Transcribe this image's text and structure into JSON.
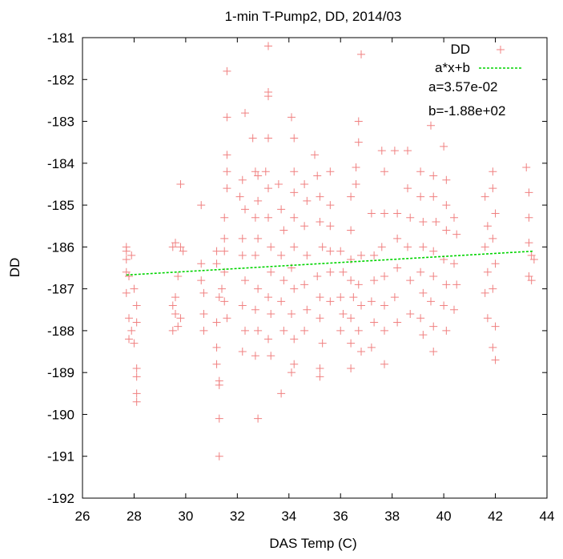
{
  "chart_data": {
    "type": "scatter",
    "title": "1-min T-Pump2, DD, 2014/03",
    "xlabel": "DAS Temp (C)",
    "ylabel": "DD",
    "xlim": [
      26,
      44
    ],
    "ylim": [
      -192,
      -181
    ],
    "xticks": [
      26,
      28,
      30,
      32,
      34,
      36,
      38,
      40,
      42,
      44
    ],
    "yticks": [
      -192,
      -191,
      -190,
      -189,
      -188,
      -187,
      -186,
      -185,
      -184,
      -183,
      -182,
      -181
    ],
    "grid": false,
    "legend_position": "top-right",
    "series": [
      {
        "name": "DD",
        "color": "#f08080",
        "marker": "plus",
        "points": [
          [
            27.7,
            -186.0
          ],
          [
            27.7,
            -186.1
          ],
          [
            27.7,
            -186.3
          ],
          [
            27.7,
            -186.6
          ],
          [
            27.8,
            -186.7
          ],
          [
            27.7,
            -187.1
          ],
          [
            27.8,
            -187.7
          ],
          [
            27.9,
            -188.0
          ],
          [
            27.8,
            -188.2
          ],
          [
            27.9,
            -186.2
          ],
          [
            28.1,
            -187.4
          ],
          [
            28.1,
            -187.8
          ],
          [
            28.0,
            -188.3
          ],
          [
            28.1,
            -188.9
          ],
          [
            28.1,
            -189.1
          ],
          [
            28.1,
            -189.5
          ],
          [
            28.1,
            -189.7
          ],
          [
            28.0,
            -187.0
          ],
          [
            29.5,
            -186.0
          ],
          [
            29.6,
            -185.9
          ],
          [
            29.5,
            -187.4
          ],
          [
            29.6,
            -187.6
          ],
          [
            29.5,
            -188.0
          ],
          [
            29.7,
            -187.9
          ],
          [
            29.8,
            -184.5
          ],
          [
            29.8,
            -186.0
          ],
          [
            29.9,
            -186.1
          ],
          [
            29.7,
            -186.7
          ],
          [
            29.6,
            -187.2
          ],
          [
            29.8,
            -187.7
          ],
          [
            30.6,
            -185.0
          ],
          [
            30.6,
            -186.8
          ],
          [
            30.7,
            -187.1
          ],
          [
            30.7,
            -187.6
          ],
          [
            30.7,
            -188.0
          ],
          [
            30.6,
            -186.4
          ],
          [
            31.2,
            -186.4
          ],
          [
            31.3,
            -187.2
          ],
          [
            31.2,
            -187.8
          ],
          [
            31.2,
            -188.4
          ],
          [
            31.2,
            -188.8
          ],
          [
            31.3,
            -189.2
          ],
          [
            31.3,
            -189.3
          ],
          [
            31.3,
            -190.1
          ],
          [
            31.3,
            -191.0
          ],
          [
            31.2,
            -186.1
          ],
          [
            31.5,
            -186.1
          ],
          [
            31.5,
            -185.8
          ],
          [
            31.5,
            -185.3
          ],
          [
            31.6,
            -184.6
          ],
          [
            31.6,
            -184.2
          ],
          [
            31.6,
            -183.8
          ],
          [
            31.6,
            -182.9
          ],
          [
            31.6,
            -181.8
          ],
          [
            31.5,
            -186.6
          ],
          [
            31.4,
            -187.0
          ],
          [
            31.5,
            -187.3
          ],
          [
            31.6,
            -187.7
          ],
          [
            32.1,
            -184.8
          ],
          [
            32.2,
            -184.4
          ],
          [
            32.3,
            -182.8
          ],
          [
            32.3,
            -185.1
          ],
          [
            32.2,
            -185.8
          ],
          [
            32.2,
            -186.2
          ],
          [
            32.3,
            -186.8
          ],
          [
            32.2,
            -187.4
          ],
          [
            32.3,
            -188.0
          ],
          [
            32.2,
            -188.5
          ],
          [
            32.6,
            -183.4
          ],
          [
            32.7,
            -184.2
          ],
          [
            32.8,
            -184.3
          ],
          [
            32.8,
            -184.9
          ],
          [
            32.7,
            -185.3
          ],
          [
            32.8,
            -185.8
          ],
          [
            32.7,
            -186.2
          ],
          [
            32.8,
            -187.0
          ],
          [
            32.7,
            -187.5
          ],
          [
            32.8,
            -188.0
          ],
          [
            32.7,
            -188.6
          ],
          [
            32.8,
            -190.1
          ],
          [
            33.2,
            -181.2
          ],
          [
            33.2,
            -182.3
          ],
          [
            33.2,
            -182.4
          ],
          [
            33.2,
            -183.4
          ],
          [
            33.1,
            -184.2
          ],
          [
            33.2,
            -184.6
          ],
          [
            33.2,
            -185.3
          ],
          [
            33.3,
            -186.0
          ],
          [
            33.3,
            -186.6
          ],
          [
            33.2,
            -187.2
          ],
          [
            33.3,
            -187.6
          ],
          [
            33.2,
            -188.2
          ],
          [
            33.3,
            -188.6
          ],
          [
            33.6,
            -184.5
          ],
          [
            33.7,
            -185.1
          ],
          [
            33.8,
            -185.6
          ],
          [
            33.7,
            -186.2
          ],
          [
            33.8,
            -186.8
          ],
          [
            33.7,
            -187.3
          ],
          [
            33.8,
            -188.0
          ],
          [
            33.7,
            -189.5
          ],
          [
            34.1,
            -182.9
          ],
          [
            34.2,
            -183.4
          ],
          [
            34.2,
            -184.2
          ],
          [
            34.2,
            -184.7
          ],
          [
            34.2,
            -185.3
          ],
          [
            34.2,
            -186.0
          ],
          [
            34.1,
            -186.5
          ],
          [
            34.2,
            -187.0
          ],
          [
            34.1,
            -187.6
          ],
          [
            34.2,
            -188.2
          ],
          [
            34.2,
            -188.8
          ],
          [
            34.1,
            -189.0
          ],
          [
            34.6,
            -184.5
          ],
          [
            34.7,
            -184.9
          ],
          [
            34.6,
            -185.5
          ],
          [
            34.7,
            -186.2
          ],
          [
            34.6,
            -186.9
          ],
          [
            34.7,
            -187.5
          ],
          [
            34.6,
            -188.0
          ],
          [
            35.0,
            -183.8
          ],
          [
            35.1,
            -184.3
          ],
          [
            35.2,
            -184.8
          ],
          [
            35.2,
            -185.4
          ],
          [
            35.3,
            -186.0
          ],
          [
            35.1,
            -186.7
          ],
          [
            35.2,
            -187.2
          ],
          [
            35.2,
            -187.7
          ],
          [
            35.3,
            -188.3
          ],
          [
            35.2,
            -188.9
          ],
          [
            35.2,
            -189.1
          ],
          [
            35.6,
            -184.2
          ],
          [
            35.6,
            -185.0
          ],
          [
            35.6,
            -185.5
          ],
          [
            35.6,
            -186.1
          ],
          [
            35.6,
            -186.6
          ],
          [
            35.6,
            -187.3
          ],
          [
            36.0,
            -186.1
          ],
          [
            36.1,
            -186.6
          ],
          [
            36.0,
            -187.2
          ],
          [
            36.1,
            -187.6
          ],
          [
            36.0,
            -188.0
          ],
          [
            36.4,
            -184.8
          ],
          [
            36.4,
            -185.6
          ],
          [
            36.4,
            -186.3
          ],
          [
            36.4,
            -186.8
          ],
          [
            36.5,
            -187.2
          ],
          [
            36.4,
            -187.7
          ],
          [
            36.4,
            -188.3
          ],
          [
            36.4,
            -188.9
          ],
          [
            36.7,
            -183.0
          ],
          [
            36.7,
            -183.5
          ],
          [
            36.6,
            -184.1
          ],
          [
            36.6,
            -184.5
          ],
          [
            36.8,
            -181.4
          ],
          [
            36.8,
            -186.2
          ],
          [
            36.7,
            -186.9
          ],
          [
            36.8,
            -187.4
          ],
          [
            36.7,
            -188.0
          ],
          [
            36.8,
            -188.5
          ],
          [
            37.2,
            -185.2
          ],
          [
            37.3,
            -186.2
          ],
          [
            37.3,
            -186.8
          ],
          [
            37.2,
            -187.3
          ],
          [
            37.3,
            -187.8
          ],
          [
            37.2,
            -188.4
          ],
          [
            37.6,
            -183.7
          ],
          [
            37.7,
            -184.2
          ],
          [
            37.7,
            -185.2
          ],
          [
            37.6,
            -186.0
          ],
          [
            37.7,
            -186.7
          ],
          [
            37.7,
            -187.4
          ],
          [
            37.7,
            -188.0
          ],
          [
            37.7,
            -188.8
          ],
          [
            38.1,
            -183.7
          ],
          [
            38.2,
            -185.2
          ],
          [
            38.2,
            -185.8
          ],
          [
            38.2,
            -186.5
          ],
          [
            38.1,
            -187.2
          ],
          [
            38.2,
            -187.8
          ],
          [
            38.6,
            -183.7
          ],
          [
            38.6,
            -184.6
          ],
          [
            38.7,
            -185.3
          ],
          [
            38.6,
            -186.0
          ],
          [
            38.7,
            -186.8
          ],
          [
            38.7,
            -187.6
          ],
          [
            39.1,
            -184.2
          ],
          [
            39.1,
            -184.8
          ],
          [
            39.2,
            -185.4
          ],
          [
            39.2,
            -186.0
          ],
          [
            39.1,
            -186.6
          ],
          [
            39.2,
            -187.1
          ],
          [
            39.1,
            -187.7
          ],
          [
            39.2,
            -188.1
          ],
          [
            39.5,
            -183.1
          ],
          [
            39.6,
            -184.3
          ],
          [
            39.6,
            -184.8
          ],
          [
            39.7,
            -185.4
          ],
          [
            39.6,
            -186.1
          ],
          [
            39.6,
            -186.7
          ],
          [
            39.5,
            -187.3
          ],
          [
            39.6,
            -187.9
          ],
          [
            39.6,
            -188.5
          ],
          [
            40.0,
            -183.6
          ],
          [
            40.1,
            -184.4
          ],
          [
            40.1,
            -185.0
          ],
          [
            40.1,
            -185.6
          ],
          [
            40.0,
            -186.3
          ],
          [
            40.1,
            -186.9
          ],
          [
            40.0,
            -187.4
          ],
          [
            40.1,
            -188.0
          ],
          [
            40.4,
            -185.3
          ],
          [
            40.5,
            -185.7
          ],
          [
            40.4,
            -186.4
          ],
          [
            40.5,
            -186.9
          ],
          [
            40.4,
            -187.5
          ],
          [
            41.6,
            -184.8
          ],
          [
            41.7,
            -185.5
          ],
          [
            41.6,
            -186.0
          ],
          [
            41.7,
            -186.6
          ],
          [
            41.6,
            -187.1
          ],
          [
            41.7,
            -187.7
          ],
          [
            41.9,
            -184.2
          ],
          [
            41.9,
            -184.6
          ],
          [
            42.0,
            -185.2
          ],
          [
            41.9,
            -185.8
          ],
          [
            42.0,
            -186.4
          ],
          [
            41.9,
            -187.0
          ],
          [
            42.0,
            -187.9
          ],
          [
            41.9,
            -188.4
          ],
          [
            42.0,
            -188.7
          ],
          [
            43.2,
            -184.1
          ],
          [
            43.3,
            -184.7
          ],
          [
            43.3,
            -185.3
          ],
          [
            43.3,
            -185.9
          ],
          [
            43.4,
            -186.2
          ],
          [
            43.3,
            -186.7
          ],
          [
            43.4,
            -186.8
          ],
          [
            43.5,
            -186.3
          ]
        ]
      },
      {
        "name": "a*x+b",
        "color": "#00d400",
        "line_style": "dashed",
        "fit": {
          "a": 0.0357,
          "b": -188.0
        },
        "x": [
          27.7,
          43.5
        ],
        "y": [
          -186.67,
          -186.1
        ]
      }
    ],
    "annotations": [
      "a=3.57e-02",
      "b=-1.88e+02"
    ]
  }
}
